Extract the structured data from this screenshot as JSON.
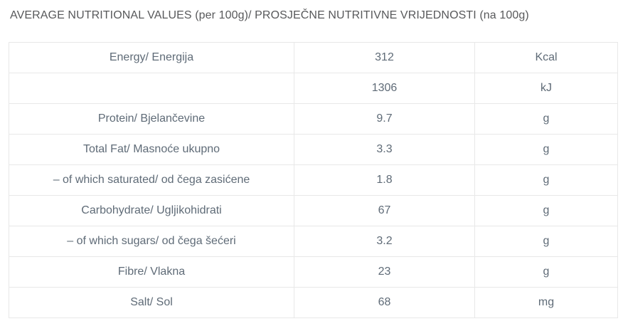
{
  "page": {
    "title": "AVERAGE NUTRITIONAL VALUES (per 100g)/ PROSJEČNE NUTRITIVNE VRIJEDNOSTI (na 100g)"
  },
  "colors": {
    "background": "#ffffff",
    "title_text": "#58595b",
    "cell_text": "#5f6b77",
    "border": "#e8e8e8"
  },
  "table": {
    "columns": [
      "nutrient",
      "value",
      "unit"
    ],
    "rows": [
      {
        "label": "Energy/ Energija",
        "value": "312",
        "unit": "Kcal"
      },
      {
        "label": "",
        "value": "1306",
        "unit": "kJ"
      },
      {
        "label": "Protein/ Bjelančevine",
        "value": "9.7",
        "unit": "g"
      },
      {
        "label": "Total Fat/ Masnoće ukupno",
        "value": "3.3",
        "unit": "g"
      },
      {
        "label": "– of which saturated/ od čega zasićene",
        "value": "1.8",
        "unit": "g"
      },
      {
        "label": "Carbohydrate/ Ugljikohidrati",
        "value": "67",
        "unit": "g"
      },
      {
        "label": "– of which sugars/ od čega šećeri",
        "value": "3.2",
        "unit": "g"
      },
      {
        "label": "Fibre/ Vlakna",
        "value": "23",
        "unit": "g"
      },
      {
        "label": "Salt/ Sol",
        "value": "68",
        "unit": "mg"
      }
    ]
  }
}
